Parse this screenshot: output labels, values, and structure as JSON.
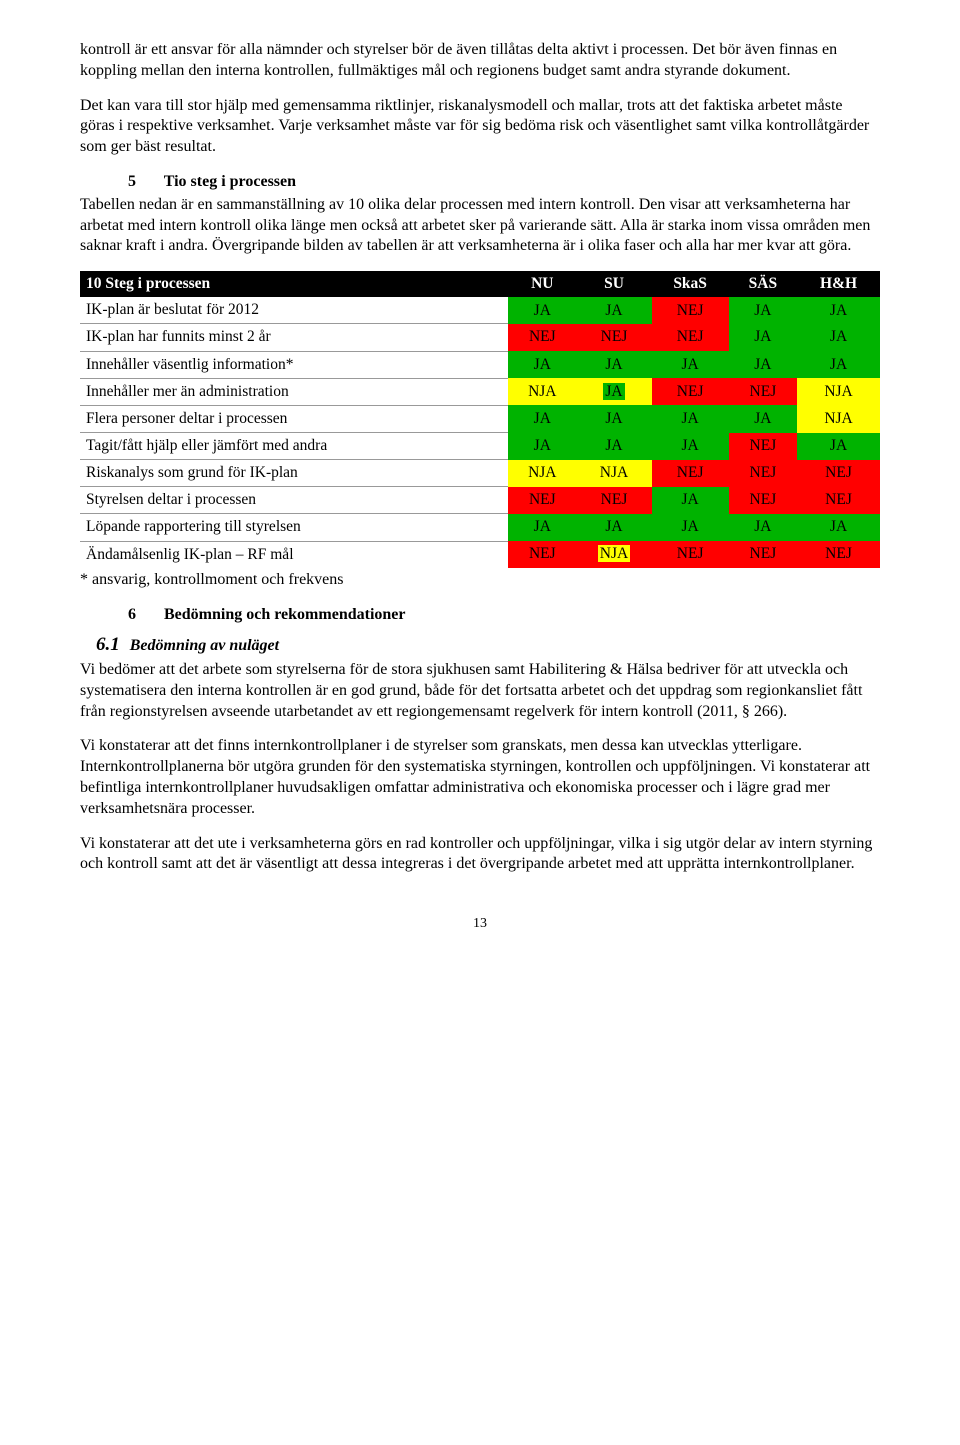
{
  "colors": {
    "ja": "#00b300",
    "nja": "#ffff00",
    "nej": "#ff0000",
    "header_bg": "#000000",
    "header_fg": "#ffffff",
    "text_black": "#000000"
  },
  "paragraphs": {
    "p1": "kontroll är ett ansvar för alla nämnder och styrelser bör de även tillåtas delta aktivt i processen. Det bör även finnas en koppling mellan den interna kontrollen, fullmäktiges mål och regionens budget samt andra styrande dokument.",
    "p2": "Det kan vara till stor hjälp med gemensamma riktlinjer, riskanalysmodell och mallar, trots att det faktiska arbetet måste göras i respektive verksamhet. Varje verksamhet måste var för sig bedöma risk och väsentlighet samt vilka kontrollåtgärder som ger bäst resultat.",
    "p3_body": "Tabellen nedan är en sammanställning av 10 olika delar processen med intern kontroll. Den visar att verksamheterna har arbetat med intern kontroll olika länge men också att arbetet sker på varierande sätt. Alla är starka inom vissa områden men saknar kraft i andra. Övergripande bilden av tabellen är att verksamheterna är i olika faser och alla har mer kvar att göra.",
    "p4": "Vi bedömer att det arbete som styrelserna för de stora sjukhusen samt Habilitering & Hälsa bedriver för att utveckla och systematisera den interna kontrollen är en god grund, både för det fortsatta arbetet och det uppdrag som regionkansliet fått från regionstyrelsen avseende utarbetandet av ett regiongemensamt regelverk för intern kontroll (2011, § 266).",
    "p5": "Vi konstaterar att det finns internkontrollplaner i de styrelser som granskats, men dessa kan utvecklas ytterligare. Internkontrollplanerna bör utgöra grunden för den systematiska styrningen, kontrollen och uppföljningen. Vi konstaterar att befintliga internkontrollplaner huvudsakligen omfattar administrativa och ekonomiska processer och i lägre grad mer verksamhetsnära processer.",
    "p6": "Vi konstaterar att det ute i verksamheterna görs en rad kontroller och uppföljningar, vilka i sig utgör delar av intern styrning och kontroll samt att det är väsentligt att dessa integreras i det övergripande arbetet med att upprätta internkontrollplaner."
  },
  "sections": {
    "s5_num": "5",
    "s5_title": "Tio steg i processen",
    "s6_num": "6",
    "s6_title": "Bedömning och rekommendationer",
    "s6_1_num": "6.1",
    "s6_1_title": "Bedömning av nuläget"
  },
  "table": {
    "header_label": "10 Steg i processen",
    "columns": [
      "NU",
      "SU",
      "SkaS",
      "SÄS",
      "H&H"
    ],
    "footnote": "* ansvarig, kontrollmoment och frekvens",
    "rows": [
      {
        "label": "IK-plan är beslutat för 2012",
        "cells": [
          {
            "v": "JA",
            "c": "ja"
          },
          {
            "v": "JA",
            "c": "ja"
          },
          {
            "v": "NEJ",
            "c": "nej"
          },
          {
            "v": "JA",
            "c": "ja"
          },
          {
            "v": "JA",
            "c": "ja"
          }
        ]
      },
      {
        "label": "IK-plan har funnits minst 2 år",
        "cells": [
          {
            "v": "NEJ",
            "c": "nej"
          },
          {
            "v": "NEJ",
            "c": "nej"
          },
          {
            "v": "NEJ",
            "c": "nej"
          },
          {
            "v": "JA",
            "c": "ja"
          },
          {
            "v": "JA",
            "c": "ja"
          }
        ]
      },
      {
        "label": "Innehåller väsentlig information*",
        "cells": [
          {
            "v": "JA",
            "c": "ja"
          },
          {
            "v": "JA",
            "c": "ja"
          },
          {
            "v": "JA",
            "c": "ja"
          },
          {
            "v": "JA",
            "c": "ja"
          },
          {
            "v": "JA",
            "c": "ja"
          }
        ]
      },
      {
        "label": "Innehåller mer än administration",
        "cells": [
          {
            "v": "NJA",
            "c": "nja"
          },
          {
            "v": "JA",
            "c": "nja",
            "inner": "ja"
          },
          {
            "v": "NEJ",
            "c": "nej"
          },
          {
            "v": "NEJ",
            "c": "nej"
          },
          {
            "v": "NJA",
            "c": "nja"
          }
        ]
      },
      {
        "label": "Flera personer deltar i processen",
        "cells": [
          {
            "v": "JA",
            "c": "ja"
          },
          {
            "v": "JA",
            "c": "ja"
          },
          {
            "v": "JA",
            "c": "ja"
          },
          {
            "v": "JA",
            "c": "ja"
          },
          {
            "v": "NJA",
            "c": "nja"
          }
        ]
      },
      {
        "label": "Tagit/fått hjälp eller jämfört med andra",
        "cells": [
          {
            "v": "JA",
            "c": "ja"
          },
          {
            "v": "JA",
            "c": "ja"
          },
          {
            "v": "JA",
            "c": "ja"
          },
          {
            "v": "NEJ",
            "c": "nej"
          },
          {
            "v": "JA",
            "c": "ja"
          }
        ]
      },
      {
        "label": "Riskanalys som grund för IK-plan",
        "cells": [
          {
            "v": "NJA",
            "c": "nja"
          },
          {
            "v": "NJA",
            "c": "nja"
          },
          {
            "v": "NEJ",
            "c": "nej"
          },
          {
            "v": "NEJ",
            "c": "nej"
          },
          {
            "v": "NEJ",
            "c": "nej"
          }
        ]
      },
      {
        "label": "Styrelsen deltar i processen",
        "cells": [
          {
            "v": "NEJ",
            "c": "nej"
          },
          {
            "v": "NEJ",
            "c": "nej"
          },
          {
            "v": "JA",
            "c": "ja"
          },
          {
            "v": "NEJ",
            "c": "nej"
          },
          {
            "v": "NEJ",
            "c": "nej"
          }
        ]
      },
      {
        "label": "Löpande rapportering till styrelsen",
        "cells": [
          {
            "v": "JA",
            "c": "ja"
          },
          {
            "v": "JA",
            "c": "ja"
          },
          {
            "v": "JA",
            "c": "ja"
          },
          {
            "v": "JA",
            "c": "ja"
          },
          {
            "v": "JA",
            "c": "ja"
          }
        ]
      },
      {
        "label": "Ändamålsenlig IK-plan – RF mål",
        "cells": [
          {
            "v": "NEJ",
            "c": "nej"
          },
          {
            "v": "NJA",
            "c": "nej",
            "inner": "nja"
          },
          {
            "v": "NEJ",
            "c": "nej"
          },
          {
            "v": "NEJ",
            "c": "nej"
          },
          {
            "v": "NEJ",
            "c": "nej"
          }
        ]
      }
    ]
  },
  "page_number": "13"
}
